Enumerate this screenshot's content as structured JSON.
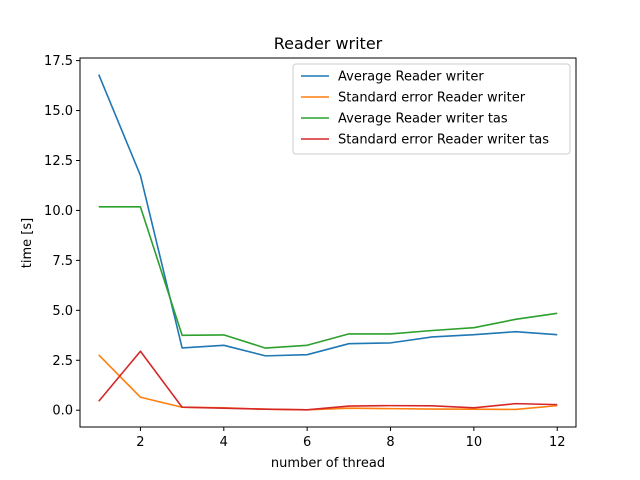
{
  "chart_data": {
    "type": "line",
    "title": "Reader writer",
    "xlabel": "number of thread",
    "ylabel": "time [s]",
    "x": [
      1,
      2,
      3,
      4,
      5,
      6,
      7,
      8,
      9,
      10,
      11,
      12
    ],
    "xlim": [
      0.55,
      12.45
    ],
    "ylim": [
      -0.84,
      17.63
    ],
    "xticks": [
      2,
      4,
      6,
      8,
      10,
      12
    ],
    "xtick_labels": [
      "2",
      "4",
      "6",
      "8",
      "10",
      "12"
    ],
    "yticks": [
      0.0,
      2.5,
      5.0,
      7.5,
      10.0,
      12.5,
      15.0,
      17.5
    ],
    "ytick_labels": [
      "0.0",
      "2.5",
      "5.0",
      "7.5",
      "10.0",
      "12.5",
      "15.0",
      "17.5"
    ],
    "grid": false,
    "legend_position": "top-right",
    "series": [
      {
        "name": "Average Reader writer",
        "color": "#1f77b4",
        "values": [
          16.8,
          11.75,
          3.12,
          3.25,
          2.72,
          2.78,
          3.33,
          3.37,
          3.67,
          3.78,
          3.93,
          3.78
        ]
      },
      {
        "name": "Standard error Reader writer",
        "color": "#ff7f0e",
        "values": [
          2.77,
          0.65,
          0.15,
          0.12,
          0.05,
          0.02,
          0.1,
          0.08,
          0.06,
          0.05,
          0.04,
          0.23
        ]
      },
      {
        "name": "Average Reader writer tas",
        "color": "#2ca02c",
        "values": [
          10.18,
          10.18,
          3.75,
          3.77,
          3.11,
          3.25,
          3.82,
          3.82,
          3.99,
          4.13,
          4.55,
          4.85
        ]
      },
      {
        "name": "Standard error Reader writer tas",
        "color": "#d62728",
        "values": [
          0.45,
          2.95,
          0.15,
          0.1,
          0.05,
          0.02,
          0.21,
          0.23,
          0.22,
          0.12,
          0.33,
          0.28
        ]
      }
    ]
  }
}
